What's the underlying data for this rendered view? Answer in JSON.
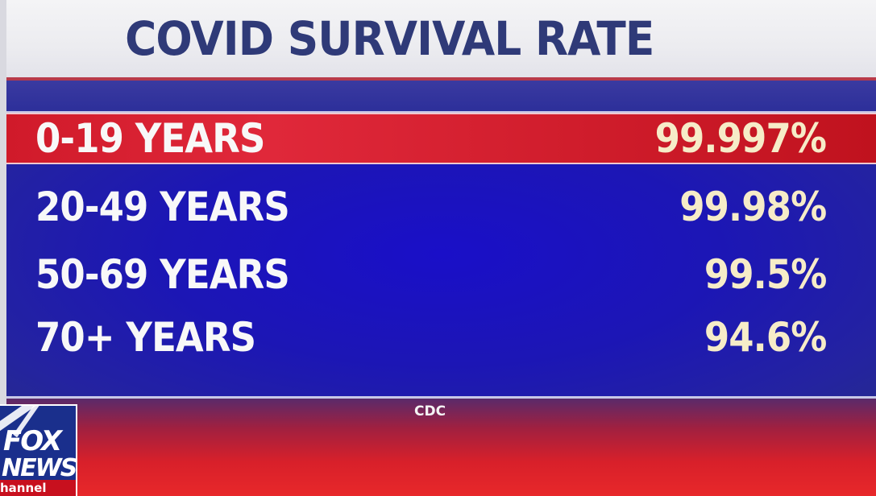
{
  "title": "COVID SURVIVAL RATE",
  "rows": [
    {
      "label": "0-19 YEARS",
      "value": "99.997%",
      "highlighted": true
    },
    {
      "label": "20-49 YEARS",
      "value": "99.98%",
      "highlighted": false
    },
    {
      "label": "50-69 YEARS",
      "value": "99.5%",
      "highlighted": false
    },
    {
      "label": "70+ YEARS",
      "value": "94.6%",
      "highlighted": false
    }
  ],
  "source": "CDC",
  "logo": {
    "line1": "FOX",
    "line2": "NEWS",
    "line3": "hannel"
  },
  "colors": {
    "title": "#2f3a78",
    "board_blue": "#1c16b5",
    "highlight_red": "#d01a2a",
    "value_text": "#f6ecc8"
  }
}
